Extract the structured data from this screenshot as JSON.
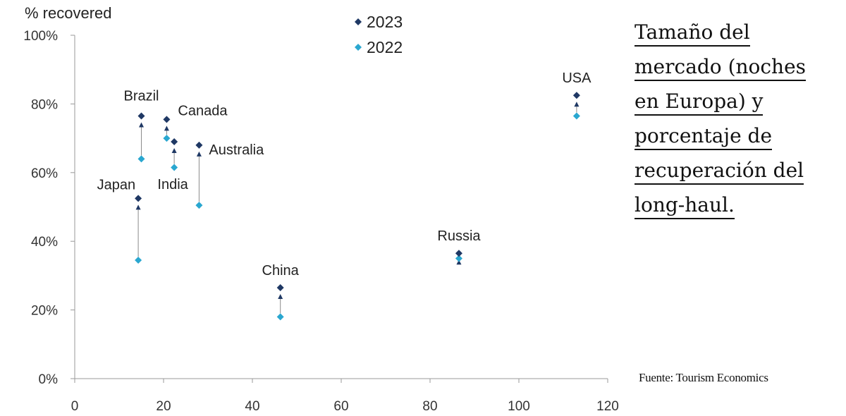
{
  "chart_data": {
    "type": "scatter",
    "ylabel": "% recovered",
    "xlabel": "",
    "xlim": [
      0,
      120
    ],
    "ylim": [
      0,
      100
    ],
    "x_ticks": [
      "0",
      "20",
      "40",
      "60",
      "80",
      "100",
      "120"
    ],
    "y_ticks": [
      "0%",
      "20%",
      "40%",
      "60%",
      "80%",
      "100%"
    ],
    "legend_position": "top-center",
    "grid": false,
    "colors": {
      "2023": "#1f3864",
      "2022": "#2aa7d0",
      "axis": "#9a9a9a",
      "arrow": "#1f3864"
    },
    "series": [
      {
        "name": "2023",
        "points": [
          {
            "label": "Brazil",
            "x": 15,
            "y": 76.5
          },
          {
            "label": "Canada",
            "x": 20.7,
            "y": 75.5
          },
          {
            "label": "India",
            "x": 22.4,
            "y": 69
          },
          {
            "label": "Australia",
            "x": 28,
            "y": 68
          },
          {
            "label": "Japan",
            "x": 14.3,
            "y": 52.5
          },
          {
            "label": "China",
            "x": 46.3,
            "y": 26.5
          },
          {
            "label": "Russia",
            "x": 86.5,
            "y": 36.5
          },
          {
            "label": "USA",
            "x": 113,
            "y": 82.5
          }
        ]
      },
      {
        "name": "2022",
        "points": [
          {
            "label": "Brazil",
            "x": 15,
            "y": 64
          },
          {
            "label": "Canada",
            "x": 20.7,
            "y": 70
          },
          {
            "label": "India",
            "x": 22.4,
            "y": 61.5
          },
          {
            "label": "Australia",
            "x": 28,
            "y": 50.5
          },
          {
            "label": "Japan",
            "x": 14.3,
            "y": 34.5
          },
          {
            "label": "China",
            "x": 46.3,
            "y": 18
          },
          {
            "label": "Russia",
            "x": 86.5,
            "y": 35
          },
          {
            "label": "USA",
            "x": 113,
            "y": 76.5
          }
        ]
      }
    ]
  },
  "annotation": {
    "lines": [
      "Tamaño del",
      "mercado (noches",
      "en Europa) y",
      "porcentaje de",
      "recuperación del",
      "long-haul."
    ]
  },
  "source": "Fuente: Tourism Economics"
}
